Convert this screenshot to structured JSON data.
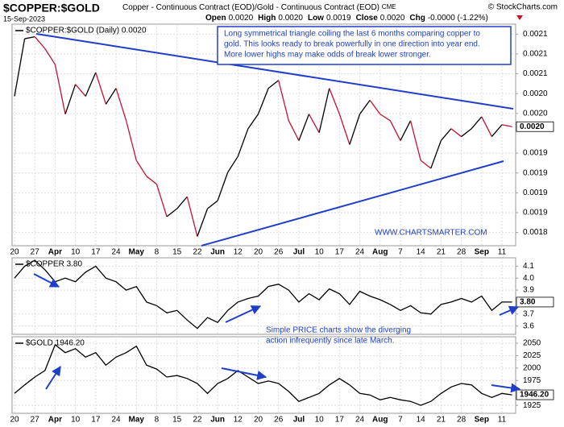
{
  "header": {
    "symbol": "$COPPER:$GOLD",
    "description": "Copper - Continuous Contract (EOD)/Gold - Continuous Contract (EOD)",
    "exchange": "CME",
    "credit": "© StockCharts.com",
    "date": "15-Sep-2023",
    "quote": [
      {
        "label": "Open",
        "value": "0.0020"
      },
      {
        "label": "High",
        "value": "0.0020"
      },
      {
        "label": "Low",
        "value": "0.0019"
      },
      {
        "label": "Close",
        "value": "0.0020"
      },
      {
        "label": "Chg",
        "value": "-0.0000 (-1.22%)"
      }
    ]
  },
  "annotation": [
    "Long symmetrical triangle coiling the last 6 months comparing copper to",
    "gold. This looks ready to break powerfully in one direction into year end.",
    "More lower highs may make odds of break lower stronger."
  ],
  "watermark": "WWW.CHARTSMARTER.COM",
  "note": [
    "Simple PRICE charts show the diverging",
    "action infrequently since late March."
  ],
  "chart_data": [
    {
      "type": "line",
      "legend": "$COPPER:$GOLD (Daily) 0.0020",
      "price_label": "0.0020",
      "color": "#000000",
      "down_color": "#c8102e",
      "grid": true,
      "categories": [
        "20",
        null,
        "27",
        null,
        "Apr",
        null,
        "10",
        null,
        "17",
        null,
        "24",
        null,
        "May",
        null,
        "8",
        null,
        "15",
        null,
        "22",
        null,
        "Jun",
        null,
        "12",
        null,
        "20",
        null,
        "26",
        null,
        "Jul",
        null,
        "10",
        null,
        "17",
        null,
        "24",
        null,
        "Aug",
        null,
        "7",
        null,
        "14",
        null,
        "21",
        null,
        "28",
        null,
        "Sep",
        null,
        "11",
        null
      ],
      "values": [
        0.002026,
        0.002113,
        0.002116,
        0.002098,
        0.002074,
        0.001999,
        0.002044,
        0.002026,
        0.002062,
        0.002014,
        0.002038,
        0.001989,
        0.001929,
        0.001905,
        0.001893,
        0.001844,
        0.001856,
        0.001874,
        0.001814,
        0.001856,
        0.001868,
        0.001911,
        0.001935,
        0.001977,
        0.001999,
        0.002038,
        0.00205,
        0.001989,
        0.001959,
        0.001999,
        0.001971,
        0.002038,
        0.001999,
        0.001953,
        0.001999,
        0.00202,
        0.001999,
        0.001989,
        0.001959,
        0.001989,
        0.001929,
        0.001917,
        0.001959,
        0.001977,
        0.001965,
        0.001977,
        0.001995,
        0.001965,
        0.001983,
        0.00198
      ],
      "ylim": [
        0.0018,
        0.002135
      ],
      "yticks": [
        {
          "value": 0.00212,
          "label": "0.0021"
        },
        {
          "value": 0.00209,
          "label": "0.0021"
        },
        {
          "value": 0.00206,
          "label": "0.0021"
        },
        {
          "value": 0.00203,
          "label": "0.0020"
        },
        {
          "value": 0.002,
          "label": "0.0020"
        },
        {
          "value": 0.00194,
          "label": "0.0019"
        },
        {
          "value": 0.00191,
          "label": "0.0019"
        },
        {
          "value": 0.00188,
          "label": "0.0019"
        },
        {
          "value": 0.00185,
          "label": "0.0019"
        },
        {
          "value": 0.00182,
          "label": "0.0018"
        }
      ]
    },
    {
      "type": "line",
      "legend": "$COPPER 3.80",
      "price_label": "3.80",
      "color": "#000000",
      "grid": true,
      "values": [
        4.0,
        4.1,
        4.15,
        4.07,
        3.97,
        4.0,
        3.97,
        4.05,
        4.1,
        4.0,
        3.97,
        3.9,
        3.93,
        3.8,
        3.77,
        3.71,
        3.73,
        3.65,
        3.58,
        3.67,
        3.63,
        3.73,
        3.8,
        3.83,
        3.85,
        3.93,
        3.95,
        3.9,
        3.8,
        3.87,
        3.82,
        3.91,
        3.87,
        3.78,
        3.89,
        3.85,
        3.82,
        3.78,
        3.73,
        3.77,
        3.71,
        3.7,
        3.78,
        3.8,
        3.83,
        3.8,
        3.85,
        3.73,
        3.8,
        3.8
      ],
      "ylim": [
        3.53,
        4.17
      ],
      "yticks": [
        3.6,
        3.7,
        3.9,
        {
          "value": 4,
          "label": "4.0"
        },
        4.1
      ]
    },
    {
      "type": "line",
      "legend": "$GOLD 1946.20",
      "price_label": "1946.20",
      "color": "#000000",
      "grid": true,
      "categories": [
        "20",
        null,
        "27",
        null,
        "Apr",
        null,
        "10",
        null,
        "17",
        null,
        "24",
        null,
        "May",
        null,
        "8",
        null,
        "15",
        null,
        "22",
        null,
        "Jun",
        null,
        "12",
        null,
        "20",
        null,
        "26",
        null,
        "Jul",
        null,
        "10",
        null,
        "17",
        null,
        "24",
        null,
        "Aug",
        null,
        "7",
        null,
        "14",
        null,
        "21",
        null,
        "28",
        null,
        "Sep",
        null,
        "11",
        null
      ],
      "values": [
        1949,
        1966,
        1982,
        1995,
        2047,
        2031,
        2039,
        2022,
        2031,
        2006,
        2022,
        2031,
        2044,
        2006,
        1998,
        1982,
        1985,
        1979,
        1969,
        1949,
        1969,
        1979,
        1995,
        1982,
        1969,
        1974,
        1969,
        1953,
        1933,
        1941,
        1949,
        1966,
        1979,
        1966,
        1949,
        1946,
        1936,
        1941,
        1936,
        1933,
        1925,
        1933,
        1949,
        1962,
        1969,
        1966,
        1949,
        1941,
        1949,
        1946.2
      ],
      "ylim": [
        1909,
        2063
      ],
      "yticks": [
        1925,
        1975,
        2000,
        2025,
        2050
      ]
    }
  ]
}
